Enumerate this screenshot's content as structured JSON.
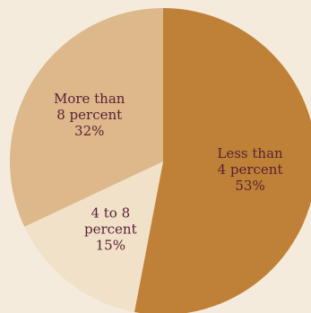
{
  "chart_data": {
    "type": "pie",
    "title": "",
    "slices": [
      {
        "label_lines": [
          "Less than",
          "4 percent",
          "53%"
        ],
        "value": 53,
        "color": "#be8137"
      },
      {
        "label_lines": [
          "4 to 8",
          "percent",
          "15%"
        ],
        "value": 15,
        "color": "#f0e1c8"
      },
      {
        "label_lines": [
          "More than",
          "8 percent",
          "32%"
        ],
        "value": 32,
        "color": "#dcb88b"
      }
    ]
  },
  "colors": {
    "background": "#f5ebdd",
    "label_text": "#5a1f33"
  }
}
